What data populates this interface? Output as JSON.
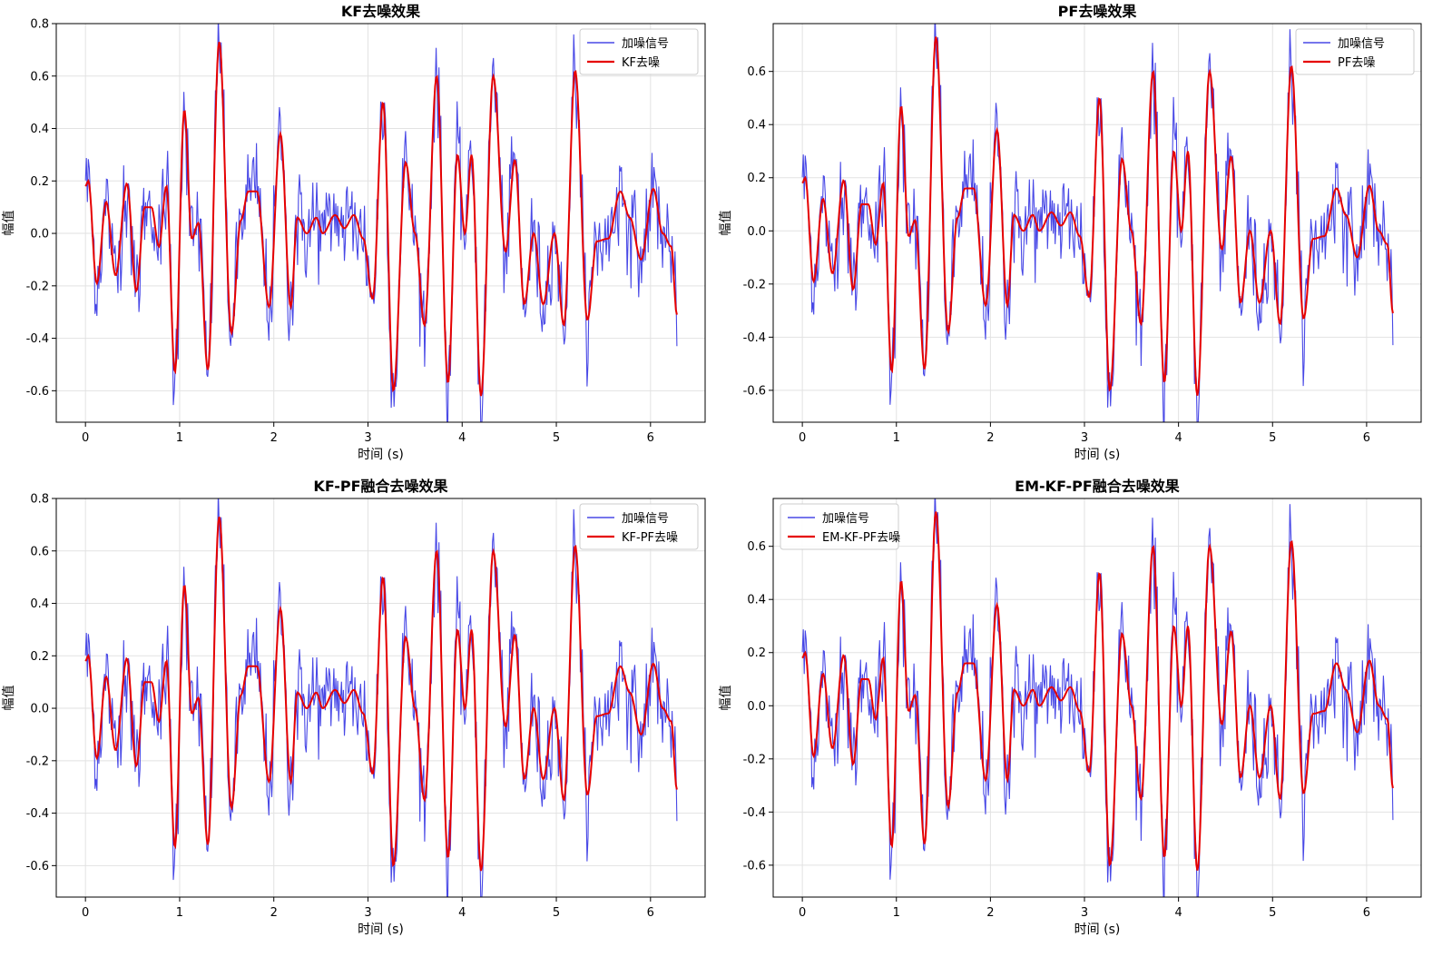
{
  "colors": {
    "noisy": "#4848e6",
    "denoised": "#e60000",
    "grid": "#e2e2e2",
    "axis": "#000000"
  },
  "chart_data": [
    {
      "type": "line",
      "title": "KF去噪效果",
      "xlabel": "时间 (s)",
      "ylabel": "幅值",
      "xlim": [
        -0.31,
        6.58
      ],
      "ylim": [
        -0.72,
        0.8
      ],
      "xticks": [
        0,
        1,
        2,
        3,
        4,
        5,
        6
      ],
      "yticks": [
        -0.6,
        -0.4,
        -0.2,
        0.0,
        0.2,
        0.4,
        0.6,
        0.8
      ],
      "grid": true,
      "legend_position": "top-right",
      "series": [
        {
          "name": "加噪信号",
          "role": "noisy"
        },
        {
          "name": "KF去噪",
          "role": "denoised"
        }
      ]
    },
    {
      "type": "line",
      "title": "PF去噪效果",
      "xlabel": "时间 (s)",
      "ylabel": "幅值",
      "xlim": [
        -0.31,
        6.58
      ],
      "ylim": [
        -0.72,
        0.78
      ],
      "xticks": [
        0,
        1,
        2,
        3,
        4,
        5,
        6
      ],
      "yticks": [
        -0.6,
        -0.4,
        -0.2,
        0.0,
        0.2,
        0.4,
        0.6
      ],
      "grid": true,
      "legend_position": "top-right",
      "series": [
        {
          "name": "加噪信号",
          "role": "noisy"
        },
        {
          "name": "PF去噪",
          "role": "denoised"
        }
      ]
    },
    {
      "type": "line",
      "title": "KF-PF融合去噪效果",
      "xlabel": "时间 (s)",
      "ylabel": "幅值",
      "xlim": [
        -0.31,
        6.58
      ],
      "ylim": [
        -0.72,
        0.8
      ],
      "xticks": [
        0,
        1,
        2,
        3,
        4,
        5,
        6
      ],
      "yticks": [
        -0.6,
        -0.4,
        -0.2,
        0.0,
        0.2,
        0.4,
        0.6,
        0.8
      ],
      "grid": true,
      "legend_position": "top-right",
      "series": [
        {
          "name": "加噪信号",
          "role": "noisy"
        },
        {
          "name": "KF-PF去噪",
          "role": "denoised"
        }
      ]
    },
    {
      "type": "line",
      "title": "EM-KF-PF融合去噪效果",
      "xlabel": "时间 (s)",
      "ylabel": "幅值",
      "xlim": [
        -0.31,
        6.58
      ],
      "ylim": [
        -0.72,
        0.78
      ],
      "xticks": [
        0,
        1,
        2,
        3,
        4,
        5,
        6
      ],
      "yticks": [
        -0.6,
        -0.4,
        -0.2,
        0.0,
        0.2,
        0.4,
        0.6
      ],
      "grid": true,
      "legend_position": "top-left",
      "series": [
        {
          "name": "加噪信号",
          "role": "noisy"
        },
        {
          "name": "EM-KF-PF去噪",
          "role": "denoised"
        }
      ]
    }
  ],
  "signal": {
    "t_end": 6.28,
    "denoised_peaks": [
      [
        0.0,
        0.18
      ],
      [
        0.03,
        0.2
      ],
      [
        0.12,
        -0.19
      ],
      [
        0.22,
        0.12
      ],
      [
        0.32,
        -0.16
      ],
      [
        0.44,
        0.19
      ],
      [
        0.54,
        -0.22
      ],
      [
        0.63,
        0.1
      ],
      [
        0.7,
        0.1
      ],
      [
        0.78,
        -0.05
      ],
      [
        0.86,
        0.18
      ],
      [
        0.95,
        -0.53
      ],
      [
        1.05,
        0.47
      ],
      [
        1.13,
        -0.02
      ],
      [
        1.2,
        0.04
      ],
      [
        1.3,
        -0.52
      ],
      [
        1.42,
        0.73
      ],
      [
        1.55,
        -0.38
      ],
      [
        1.65,
        0.05
      ],
      [
        1.73,
        0.16
      ],
      [
        1.82,
        0.16
      ],
      [
        1.95,
        -0.28
      ],
      [
        2.07,
        0.38
      ],
      [
        2.18,
        -0.28
      ],
      [
        2.25,
        0.06
      ],
      [
        2.35,
        0.0
      ],
      [
        2.45,
        0.06
      ],
      [
        2.52,
        0.0
      ],
      [
        2.65,
        0.07
      ],
      [
        2.75,
        0.02
      ],
      [
        2.85,
        0.07
      ],
      [
        2.95,
        -0.02
      ],
      [
        3.05,
        -0.25
      ],
      [
        3.16,
        0.5
      ],
      [
        3.27,
        -0.6
      ],
      [
        3.4,
        0.27
      ],
      [
        3.5,
        0.0
      ],
      [
        3.6,
        -0.35
      ],
      [
        3.73,
        0.6
      ],
      [
        3.85,
        -0.57
      ],
      [
        3.95,
        0.3
      ],
      [
        4.03,
        0.0
      ],
      [
        4.1,
        0.3
      ],
      [
        4.2,
        -0.62
      ],
      [
        4.33,
        0.6
      ],
      [
        4.46,
        -0.07
      ],
      [
        4.56,
        0.28
      ],
      [
        4.66,
        -0.27
      ],
      [
        4.76,
        0.0
      ],
      [
        4.86,
        -0.27
      ],
      [
        4.98,
        0.0
      ],
      [
        5.08,
        -0.35
      ],
      [
        5.2,
        0.62
      ],
      [
        5.33,
        -0.33
      ],
      [
        5.43,
        -0.03
      ],
      [
        5.55,
        -0.02
      ],
      [
        5.68,
        0.16
      ],
      [
        5.78,
        0.06
      ],
      [
        5.9,
        -0.1
      ],
      [
        6.03,
        0.17
      ],
      [
        6.13,
        0.0
      ],
      [
        6.22,
        -0.05
      ],
      [
        6.28,
        -0.31
      ]
    ]
  }
}
